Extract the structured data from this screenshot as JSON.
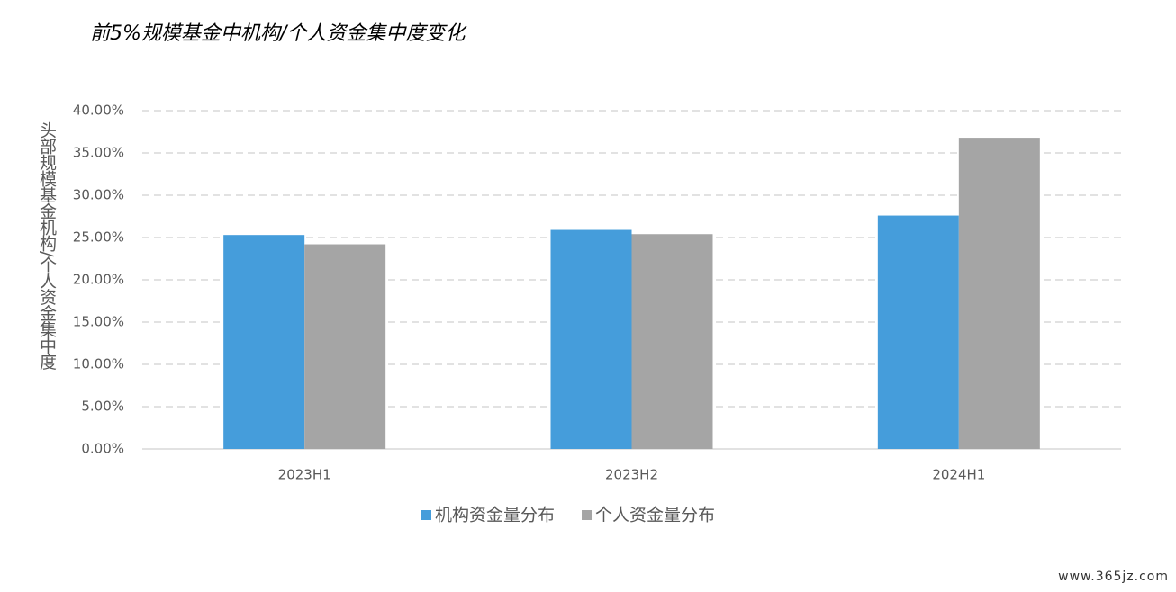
{
  "chart_data": {
    "type": "bar",
    "title": "前5%规模基金中机构/个人资金集中度变化",
    "y_label": "头部规模基金机构/个人资金集中度",
    "annotation": "www.365jz.com",
    "categories": [
      "2023H1",
      "2023H2",
      "2024H1"
    ],
    "series": [
      {
        "name": "机构资金量分布",
        "color": "#459ddb",
        "values": [
          25.3,
          25.9,
          27.6
        ]
      },
      {
        "name": "个人资金量分布",
        "color": "#a5a5a5",
        "values": [
          24.2,
          25.4,
          36.8
        ]
      }
    ],
    "ylim": [
      0,
      40
    ],
    "yticks": [
      {
        "value": 0,
        "label": "0.00%"
      },
      {
        "value": 5,
        "label": "5.00%"
      },
      {
        "value": 10,
        "label": "10.00%"
      },
      {
        "value": 15,
        "label": "15.00%"
      },
      {
        "value": 20,
        "label": "20.00%"
      },
      {
        "value": 25,
        "label": "25.00%"
      },
      {
        "value": 30,
        "label": "30.00%"
      },
      {
        "value": 35,
        "label": "35.00%"
      },
      {
        "value": 40,
        "label": "40.00%"
      }
    ],
    "grid": true,
    "legend": "bottom"
  }
}
